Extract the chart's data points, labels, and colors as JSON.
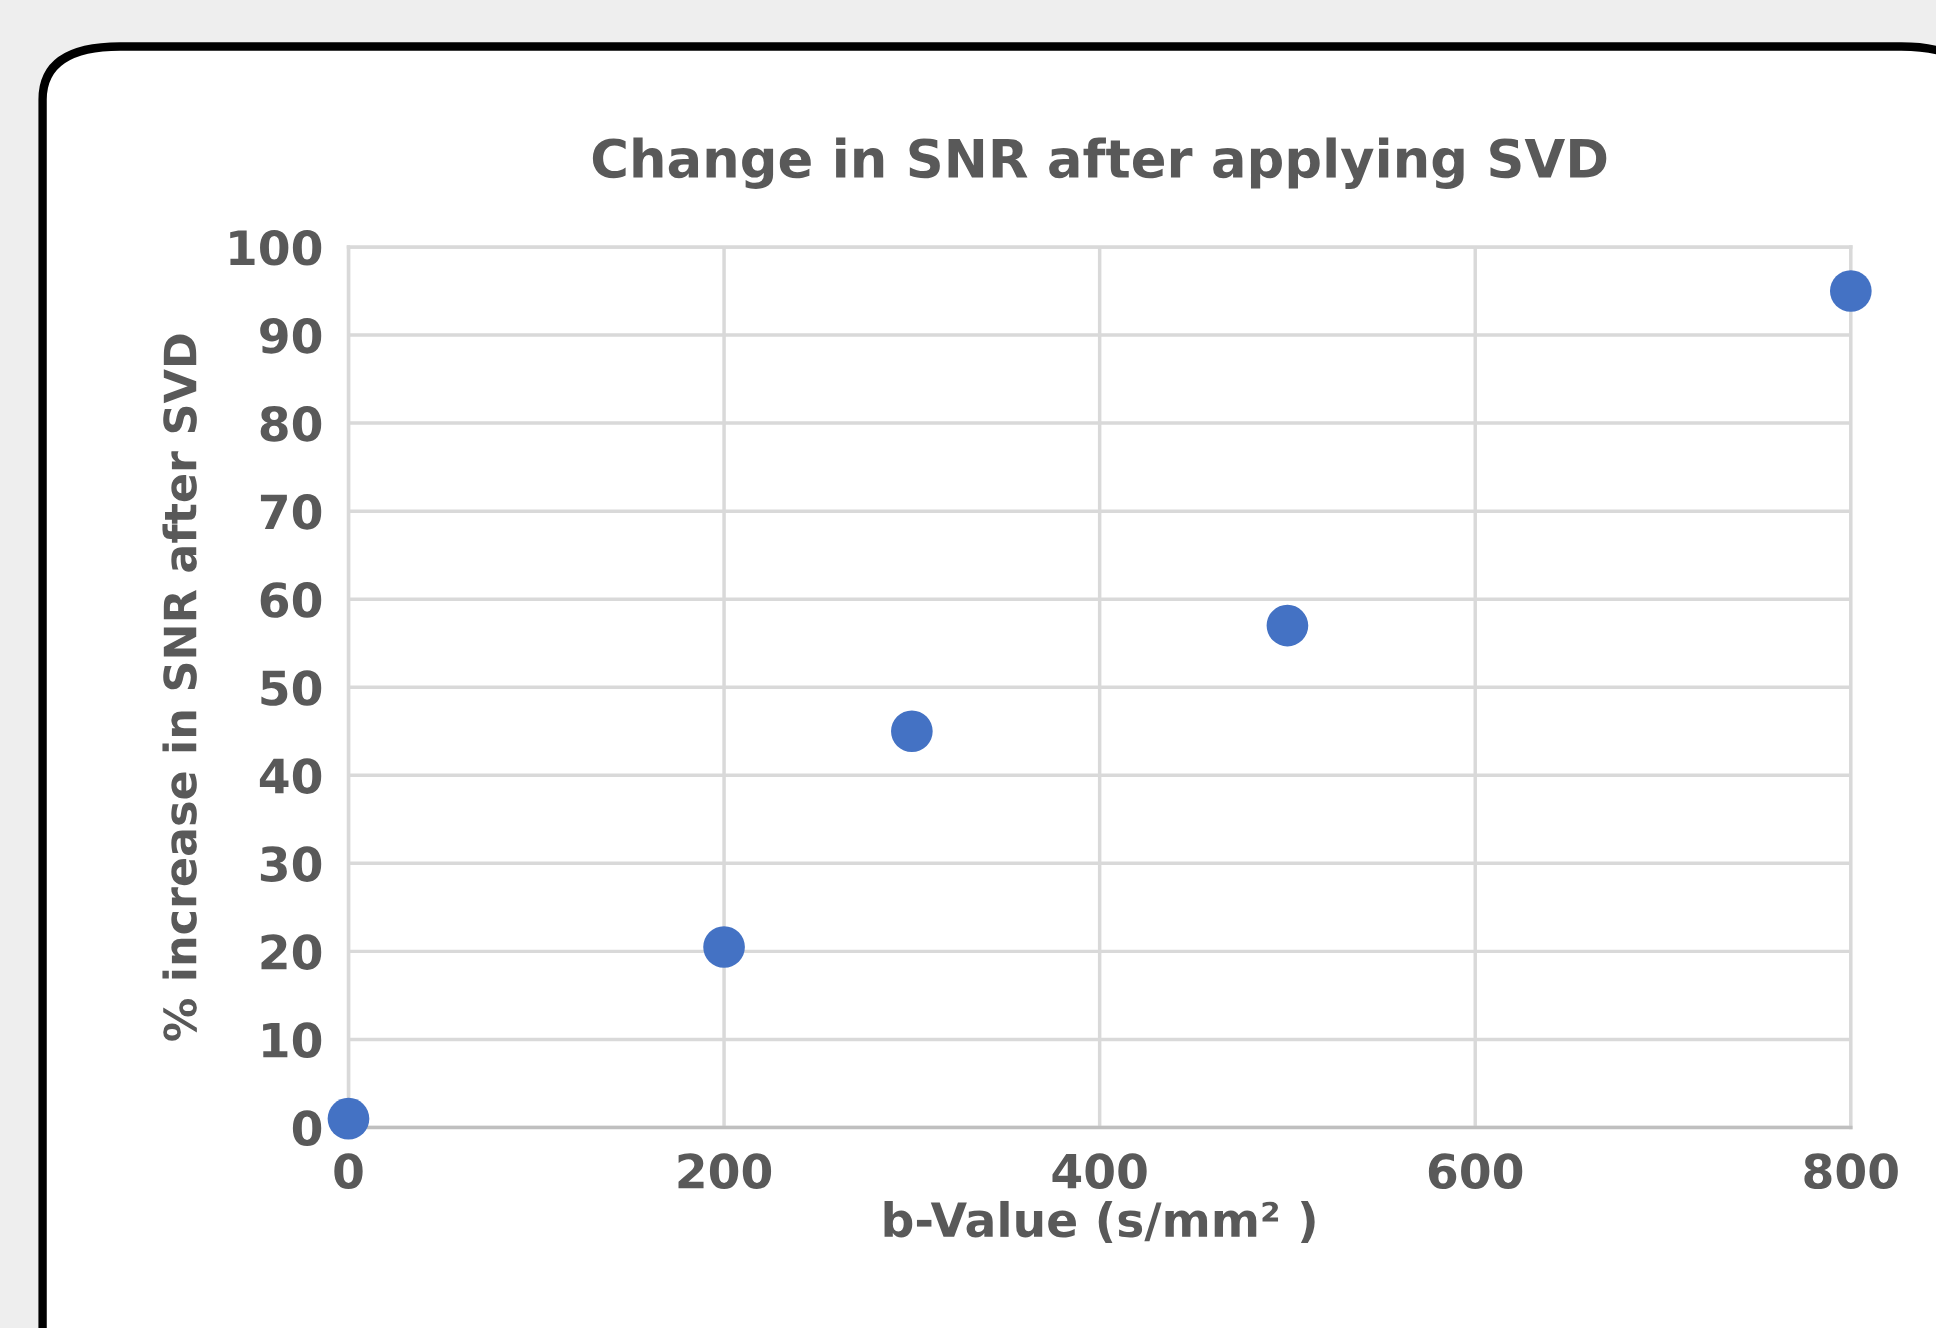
{
  "chart_data": {
    "type": "scatter",
    "title": "Change in SNR after applying SVD",
    "xlabel": "b-Value (s/mm² )",
    "ylabel": "% increase in SNR after SVD",
    "x": [
      0,
      200,
      300,
      500,
      800
    ],
    "series": [
      {
        "color": "#4472c4",
        "values": [
          1,
          20.5,
          45,
          57,
          95
        ]
      }
    ],
    "xlim": [
      0,
      800
    ],
    "xticks": [
      0,
      200,
      400,
      600,
      800
    ],
    "ylim": [
      0,
      100
    ],
    "yticks": [
      0,
      10,
      20,
      30,
      40,
      50,
      60,
      70,
      80,
      90,
      100
    ],
    "grid": true,
    "marker": "circle",
    "legend": false
  }
}
